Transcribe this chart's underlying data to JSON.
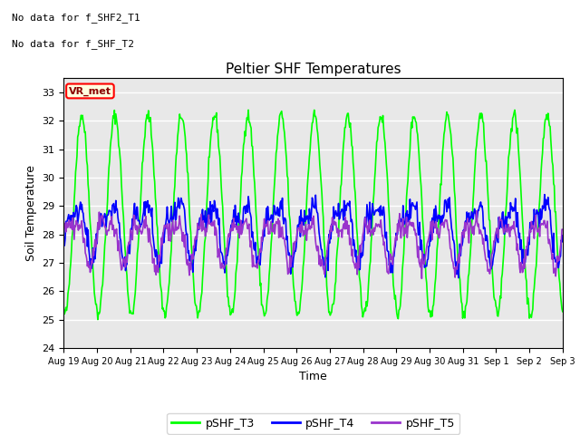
{
  "title": "Peltier SHF Temperatures",
  "xlabel": "Time",
  "ylabel": "Soil Temperature",
  "no_data_text": [
    "No data for f_SHF2_T1",
    "No data for f_SHF_T2"
  ],
  "vr_met_label": "VR_met",
  "ylim": [
    24.0,
    33.5
  ],
  "yticks": [
    24.0,
    25.0,
    26.0,
    27.0,
    28.0,
    29.0,
    30.0,
    31.0,
    32.0,
    33.0
  ],
  "xtick_labels": [
    "Aug 19",
    "Aug 20",
    "Aug 21",
    "Aug 22",
    "Aug 23",
    "Aug 24",
    "Aug 25",
    "Aug 26",
    "Aug 27",
    "Aug 28",
    "Aug 29",
    "Aug 30",
    "Aug 31",
    "Sep 1",
    "Sep 2",
    "Sep 3"
  ],
  "line_colors": {
    "pSHF_T3": "#00FF00",
    "pSHF_T4": "#0000FF",
    "pSHF_T5": "#9933CC"
  },
  "line_widths": {
    "pSHF_T3": 1.2,
    "pSHF_T4": 1.2,
    "pSHF_T5": 1.2
  },
  "legend_labels": [
    "pSHF_T3",
    "pSHF_T4",
    "pSHF_T5"
  ],
  "background_color": "#E8E8E8",
  "figure_background": "#FFFFFF",
  "grid_color": "#FFFFFF",
  "num_days": 15,
  "seed": 42
}
